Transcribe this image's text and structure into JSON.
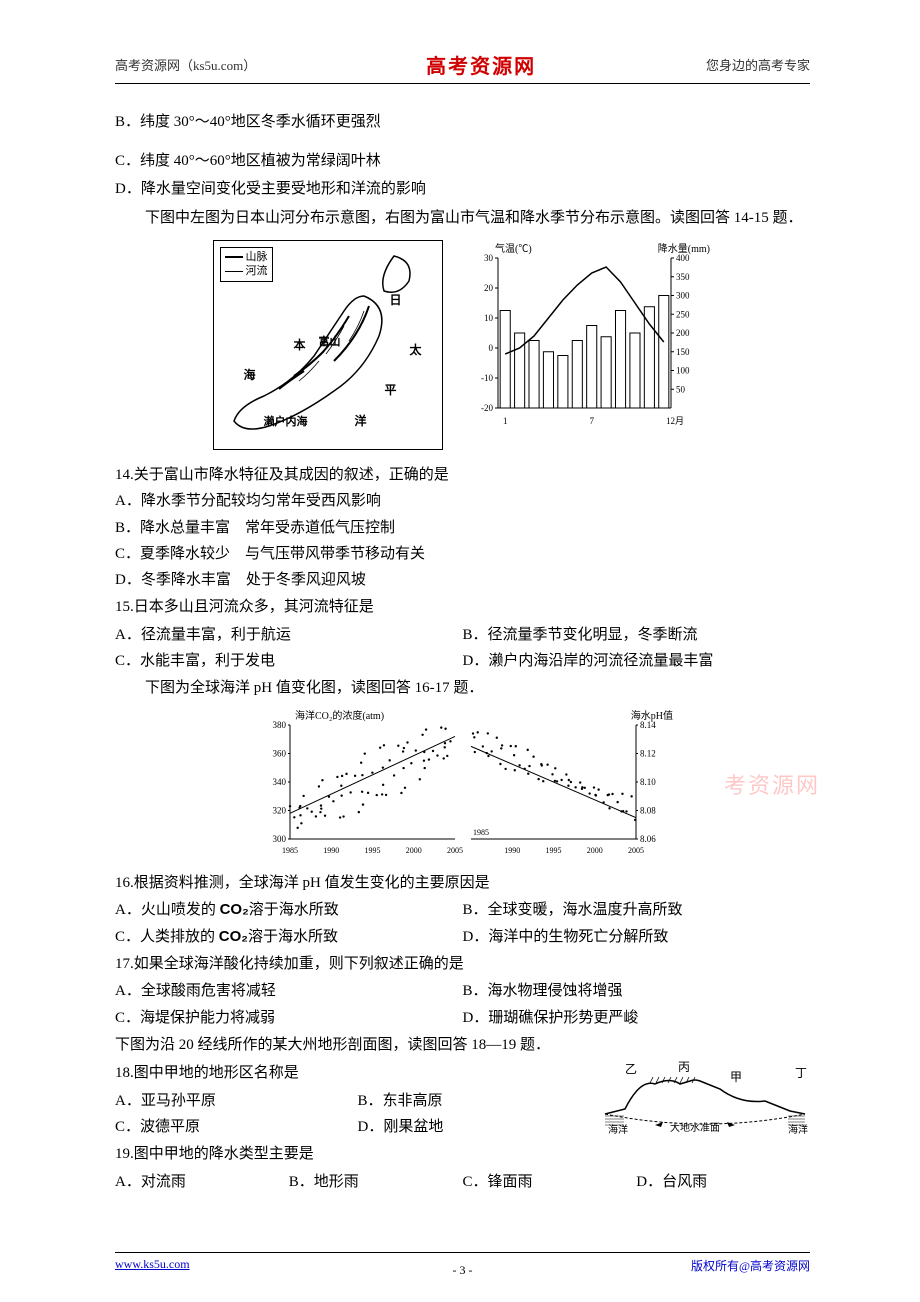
{
  "header": {
    "left": "高考资源网（ks5u.com）",
    "center": "高考资源网",
    "right": "您身边的高考专家"
  },
  "intro_options": {
    "b": "B．纬度 30°～40°地区冬季水循环更强烈",
    "c": "C．纬度 40°～60°地区植被为常绿阔叶林",
    "d": "D．降水量空间变化受主要受地形和洋流的影响"
  },
  "fig1_intro": "下图中左图为日本山河分布示意图，右图为富山市气温和降水季节分布示意图。读图回答 14-15 题．",
  "map1": {
    "legend_mountain": "山脉",
    "legend_river": "河流",
    "labels": {
      "ri": "日",
      "ben": "本",
      "fushan": "富山",
      "hai": "海",
      "tai": "太",
      "ping": "平",
      "yang": "洋",
      "seto": "濑户内海"
    }
  },
  "climate": {
    "left_axis_label": "气温(℃)",
    "right_axis_label": "降水量(mm)",
    "left_ticks": [
      "30",
      "20",
      "10",
      "0",
      "-10",
      "-20"
    ],
    "right_ticks": [
      "400",
      "350",
      "300",
      "250",
      "200",
      "150",
      "100",
      "50"
    ],
    "x_ticks": [
      "1",
      "7",
      "12月"
    ],
    "temp_values": [
      -2,
      0,
      4,
      10,
      16,
      21,
      25,
      27,
      22,
      15,
      8,
      2
    ],
    "precip_values": [
      260,
      200,
      180,
      150,
      140,
      180,
      220,
      190,
      260,
      200,
      270,
      300
    ],
    "bar_color": "#ffffff",
    "bar_border": "#000000",
    "line_color": "#000000",
    "bg": "#ffffff",
    "ylim_temp": [
      -20,
      30
    ],
    "ylim_precip": [
      0,
      400
    ]
  },
  "q14": {
    "stem": "14.关于富山市降水特征及其成因的叙述，正确的是",
    "a": "A．降水季节分配较均匀常年受西风影响",
    "b": "B．降水总量丰富　常年受赤道低气压控制",
    "c": "C．夏季降水较少　与气压带风带季节移动有关",
    "d": "D．冬季降水丰富　处于冬季风迎风坡"
  },
  "q15": {
    "stem": "15.日本多山且河流众多，其河流特征是",
    "a": "A．径流量丰富，利于航运",
    "b": "B．径流量季节变化明显，冬季断流",
    "c": "C．水能丰富，利于发电",
    "d": "D．濑户内海沿岸的河流径流量最丰富"
  },
  "fig2_intro": "下图为全球海洋 pH 值变化图，读图回答 16-17 题．",
  "scatter": {
    "left_label": "海洋CO₂的浓度(atm)",
    "right_label": "海水pH值",
    "left_ticks": [
      "380",
      "360",
      "340",
      "320",
      "300"
    ],
    "right_ticks": [
      "8.14",
      "8.12",
      "8.10",
      "8.08",
      "8.06"
    ],
    "x_ticks_left": [
      "1985",
      "1990",
      "1995",
      "2000",
      "2005"
    ],
    "x_ticks_right": [
      "1990",
      "1995",
      "2000",
      "2005"
    ],
    "mid_year": "1985",
    "dot_color": "#000000",
    "trend_color": "#000000",
    "bg": "#ffffff"
  },
  "watermark": "考资源网",
  "q16": {
    "stem": "16.根据资料推测，全球海洋 pH 值发生变化的主要原因是",
    "a_pre": "A．火山喷发的 ",
    "a_co2": "CO₂",
    "a_post": "溶于海水所致",
    "b": "B．全球变暖，海水温度升高所致",
    "c_pre": "C．人类排放的 ",
    "c_co2": "CO₂",
    "c_post": "溶于海水所致",
    "d": "D．海洋中的生物死亡分解所致"
  },
  "q17": {
    "stem": "17.如果全球海洋酸化持续加重，则下列叙述正确的是",
    "a": "A．全球酸雨危害将减轻",
    "b": "B．海水物理侵蚀将增强",
    "c": "C．海堤保护能力将减弱",
    "d": "D．珊瑚礁保护形势更严峻"
  },
  "fig3_intro": "下图为沿 20 经线所作的某大州地形剖面图，读图回答 18—19 题．",
  "q18": {
    "stem": "18.图中甲地的地形区名称是",
    "a": "A．亚马孙平原",
    "b": "B．东非高原",
    "c": "C．波德平原",
    "d": "D．刚果盆地"
  },
  "profile": {
    "labels": {
      "yi": "乙",
      "bing": "丙",
      "jia": "甲",
      "ding": "丁",
      "ocean": "海洋",
      "datum": "大地水准面"
    },
    "line_color": "#000000"
  },
  "q19": {
    "stem": "19.图中甲地的降水类型主要是",
    "a": "A．对流雨",
    "b": "B．地形雨",
    "c": "C．锋面雨",
    "d": "D．台风雨"
  },
  "footer": {
    "left": "www.ks5u.com",
    "center": "- 3 -",
    "right": "版权所有@高考资源网"
  }
}
